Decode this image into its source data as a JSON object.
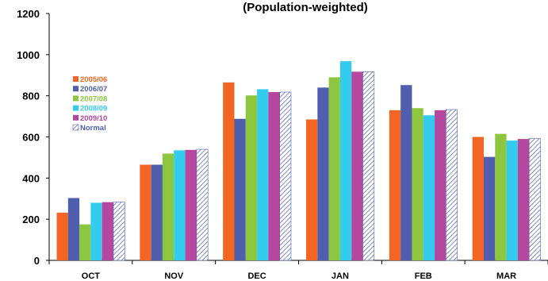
{
  "chart_data": {
    "type": "bar",
    "title": "(Population-weighted)",
    "categories": [
      "OCT",
      "NOV",
      "DEC",
      "JAN",
      "FEB",
      "MAR"
    ],
    "series": [
      {
        "name": "2005/06",
        "color": "#f26522",
        "values": [
          232,
          465,
          865,
          685,
          730,
          600
        ]
      },
      {
        "name": "2006/07",
        "color": "#4f5fad",
        "values": [
          303,
          465,
          688,
          840,
          852,
          503
        ]
      },
      {
        "name": "2007/08",
        "color": "#8dc63f",
        "values": [
          175,
          519,
          802,
          890,
          740,
          615
        ]
      },
      {
        "name": "2008/09",
        "color": "#33ccee",
        "values": [
          280,
          535,
          832,
          968,
          705,
          582
        ]
      },
      {
        "name": "2009/10",
        "color": "#b5479f",
        "values": [
          283,
          537,
          818,
          917,
          730,
          590
        ]
      },
      {
        "name": "Normal",
        "color": "#4f5fad",
        "pattern": "hatched",
        "values": [
          283,
          540,
          818,
          917,
          733,
          592
        ]
      }
    ],
    "ylim": [
      0,
      1200
    ],
    "yticks": [
      0,
      200,
      400,
      600,
      800,
      1000,
      1200
    ],
    "grid": false,
    "legend": "left"
  }
}
